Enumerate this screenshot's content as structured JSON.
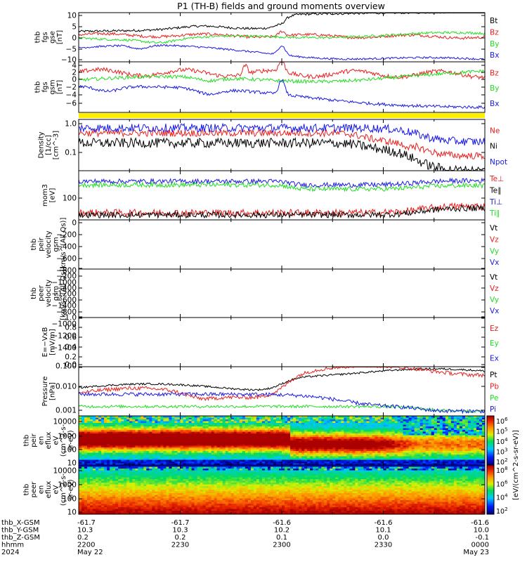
{
  "title": "P1 (TH-B) fields and ground moments overview",
  "colors": {
    "black": "#000000",
    "red": "#e8201e",
    "green": "#22dd22",
    "blue": "#1a1ae6",
    "yellow": "#ffee00"
  },
  "chart_data": {
    "type": "line",
    "time_axis": {
      "ticks": [
        "2200",
        "2230",
        "2300",
        "2330",
        "0000"
      ],
      "range": [
        "2024-05-22 22:00",
        "2024-05-23 00:00"
      ],
      "rows": [
        {
          "label": "thb_X-GSM",
          "values": [
            "-61.7",
            "-61.7",
            "-61.6",
            "-61.6",
            "-61.6"
          ]
        },
        {
          "label": "thb_Y-GSM",
          "values": [
            "10.3",
            "10.3",
            "10.2",
            "10.1",
            "10.0"
          ]
        },
        {
          "label": "thb_Z-GSM",
          "values": [
            "0.2",
            "0.2",
            "0.1",
            "0.0",
            "-0.1"
          ]
        },
        {
          "label": "hhmm",
          "values": [
            "2200",
            "2230",
            "2300",
            "2330",
            "0000"
          ]
        },
        {
          "label": "2024",
          "values": [
            "May 22",
            "",
            "",
            "",
            "May 23"
          ]
        }
      ]
    },
    "panels": [
      {
        "id": "fgs-gse",
        "ylabel": [
          "thb",
          "fgs",
          "gse",
          "[nT]"
        ],
        "scale": "linear",
        "ylim": [
          -10,
          11
        ],
        "ticks": [
          "10",
          "5",
          "0",
          "−5",
          "−10"
        ],
        "series": [
          {
            "name": "Bt",
            "color": "black"
          },
          {
            "name": "Bz",
            "color": "red"
          },
          {
            "name": "By",
            "color": "green"
          },
          {
            "name": "Bx",
            "color": "blue"
          }
        ]
      },
      {
        "id": "fgs-gsm",
        "ylabel": [
          "thb",
          "fgs",
          "gsm",
          "[nT]"
        ],
        "scale": "linear",
        "ylim": [
          -7.5,
          4.5
        ],
        "ticks": [
          "4",
          "2",
          "0",
          "−2",
          "−4",
          "−6"
        ],
        "series": [
          {
            "name": "Bz",
            "color": "red"
          },
          {
            "name": "By",
            "color": "green"
          },
          {
            "name": "Bx",
            "color": "blue"
          }
        ]
      },
      {
        "id": "density",
        "ylabel": [
          "Density",
          "[1/cc]",
          "[cm^-3]"
        ],
        "scale": "log",
        "ylim": [
          0.03,
          1.2
        ],
        "ticks": [
          "1.0",
          "0.1"
        ],
        "series": [
          {
            "name": "Ne",
            "color": "red"
          },
          {
            "name": "Ni",
            "color": "black"
          },
          {
            "name": "Npot",
            "color": "blue"
          }
        ]
      },
      {
        "id": "temperature",
        "ylabel": [
          "mom3",
          "[eV]"
        ],
        "scale": "log",
        "ylim": [
          25,
          1500
        ],
        "ticks": [
          "100"
        ],
        "series": [
          {
            "name": "Te⊥",
            "color": "red"
          },
          {
            "name": "Te∥",
            "color": "black"
          },
          {
            "name": "Ti⊥",
            "color": "blue"
          },
          {
            "name": "Ti∥",
            "color": "green"
          }
        ]
      },
      {
        "id": "peir-velocity",
        "ylabel": [
          "thb",
          "peir",
          "velocity",
          "gsm",
          "[km/s^(All Qs)]"
        ],
        "scale": "linear",
        "ylim": [
          -1400,
          0
        ],
        "ticks": [
          "0",
          "−200",
          "−400",
          "−600",
          "−800",
          "−1000",
          "−1200",
          "−1400"
        ],
        "series": [
          {
            "name": "Vt",
            "color": "black"
          },
          {
            "name": "Vz",
            "color": "red"
          },
          {
            "name": "Vy",
            "color": "green"
          },
          {
            "name": "Vx",
            "color": "blue"
          }
        ]
      },
      {
        "id": "peer-velocity",
        "ylabel": [
          "thb",
          "peer",
          "velocity",
          "gsm",
          "[km/s^(All Qs)]"
        ],
        "scale": "linear",
        "ylim": [
          -1400,
          0
        ],
        "ticks": [
          "−200",
          "−400",
          "−600",
          "−800",
          "−1000",
          "−1200",
          "−1400"
        ],
        "series": [
          {
            "name": "Vt",
            "color": "black"
          },
          {
            "name": "Vz",
            "color": "red"
          },
          {
            "name": "Vy",
            "color": "green"
          },
          {
            "name": "Vx",
            "color": "blue"
          }
        ]
      },
      {
        "id": "efield",
        "ylabel": [
          "E=−VxB",
          "[mV/m]"
        ],
        "scale": "linear",
        "ylim": [
          0,
          1
        ],
        "ticks": [
          "1.0",
          "0.8",
          "0.6",
          "0.4",
          "0.2",
          "0.0"
        ],
        "series": [
          {
            "name": "Ez",
            "color": "red"
          },
          {
            "name": "Ey",
            "color": "green"
          },
          {
            "name": "Ex",
            "color": "blue"
          }
        ]
      },
      {
        "id": "pressure",
        "ylabel": [
          "Pressure",
          "[nPa]"
        ],
        "scale": "log",
        "ylim": [
          0.0007,
          0.13
        ],
        "ticks": [
          "0.100",
          "0.010",
          "0.001"
        ],
        "series": [
          {
            "name": "Pt",
            "color": "black"
          },
          {
            "name": "Pb",
            "color": "red"
          },
          {
            "name": "Pe",
            "color": "green"
          },
          {
            "name": "Pi",
            "color": "blue"
          }
        ]
      },
      {
        "id": "peir-spec",
        "type": "heatmap",
        "ylabel": [
          "thb",
          "peir",
          "en",
          "eflux",
          "eV",
          "(cm^2-s-",
          "sr-eV)"
        ],
        "scale": "log",
        "ylim": [
          7,
          20000
        ],
        "ticks": [
          "10000",
          "1000",
          "100",
          "10"
        ]
      },
      {
        "id": "peer-spec",
        "type": "heatmap",
        "ylabel": [
          "thb",
          "peer",
          "en",
          "eflux",
          "eV",
          "(cm^2-s-",
          "sr-eV)"
        ],
        "scale": "log",
        "ylim": [
          7,
          20000
        ],
        "ticks": [
          "10000",
          "1000",
          "100",
          "10"
        ]
      }
    ],
    "colorbar": {
      "label": "[eV/(cm^2-s-sr-eV)]",
      "upper_ticks": [
        "10^6",
        "10^5",
        "10^4",
        "10^3",
        "10^2"
      ],
      "lower_ticks": [
        "10^8",
        "10^6",
        "10^4",
        "10^2"
      ]
    }
  }
}
